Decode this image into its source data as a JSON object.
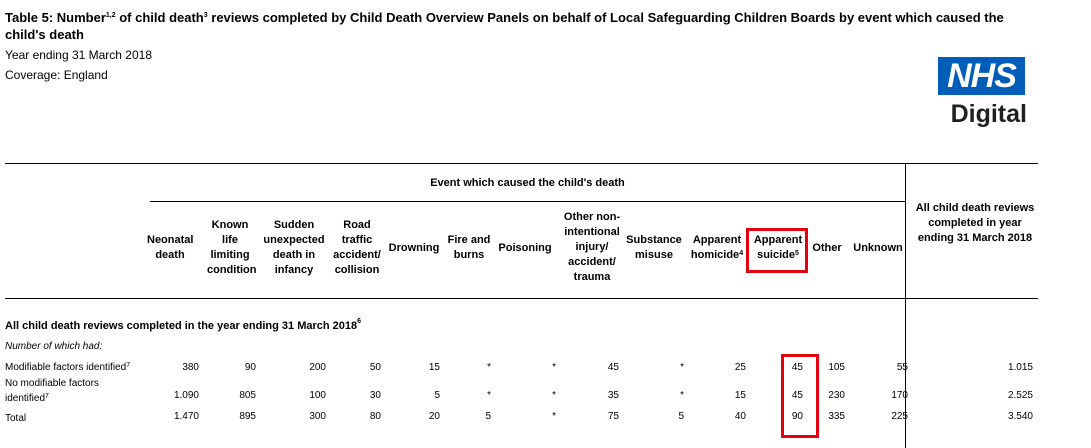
{
  "title": {
    "lead": "Table 5: Number",
    "sup1": "1,2",
    "mid": " of child death",
    "sup2": "3",
    "rest": " reviews completed by Child Death Overview Panels on behalf of Local Safeguarding Children Boards by event which caused the child's death"
  },
  "subtitle": "Year ending 31 March 2018",
  "coverage": "Coverage: England",
  "logo": {
    "top": "NHS",
    "bottom": "Digital"
  },
  "group_header": "Event which caused the child's death",
  "columns": [
    {
      "label": "Neonatal death",
      "sup": ""
    },
    {
      "label": "Known life limiting condition",
      "sup": ""
    },
    {
      "label": "Sudden unexpected death in infancy",
      "sup": ""
    },
    {
      "label": "Road traffic accident/ collision",
      "sup": ""
    },
    {
      "label": "Drowning",
      "sup": ""
    },
    {
      "label": "Fire and burns",
      "sup": ""
    },
    {
      "label": "Poisoning",
      "sup": ""
    },
    {
      "label": "Other non-intentional injury/ accident/ trauma",
      "sup": ""
    },
    {
      "label": "Substance misuse",
      "sup": ""
    },
    {
      "label": "Apparent homicide",
      "sup": "4"
    },
    {
      "label": "Apparent suicide",
      "sup": "5"
    },
    {
      "label": "Other",
      "sup": ""
    },
    {
      "label": "Unknown",
      "sup": ""
    }
  ],
  "total_header": "All child death reviews completed in year ending 31 March 2018",
  "section": {
    "label": "All child death reviews completed in the year ending 31 March 2018",
    "sup": "6"
  },
  "sub_label": "Number of which had:",
  "rows": [
    {
      "label": "Modifiable factors identified",
      "sup": "7",
      "values": [
        "380",
        "90",
        "200",
        "50",
        "15",
        "*",
        "*",
        "45",
        "*",
        "25",
        "45",
        "105",
        "55"
      ],
      "total": "1.015"
    },
    {
      "label": "No modifiable factors identified",
      "sup": "7",
      "values": [
        "1.090",
        "805",
        "100",
        "30",
        "5",
        "*",
        "*",
        "35",
        "*",
        "15",
        "45",
        "230",
        "170"
      ],
      "total": "2.525"
    },
    {
      "label": "Total",
      "sup": "",
      "values": [
        "1.470",
        "895",
        "300",
        "80",
        "20",
        "5",
        "*",
        "75",
        "5",
        "40",
        "90",
        "335",
        "225"
      ],
      "total": "3.540"
    }
  ],
  "colors": {
    "highlight": "#e3000f",
    "nhs_blue": "#005eb8"
  }
}
